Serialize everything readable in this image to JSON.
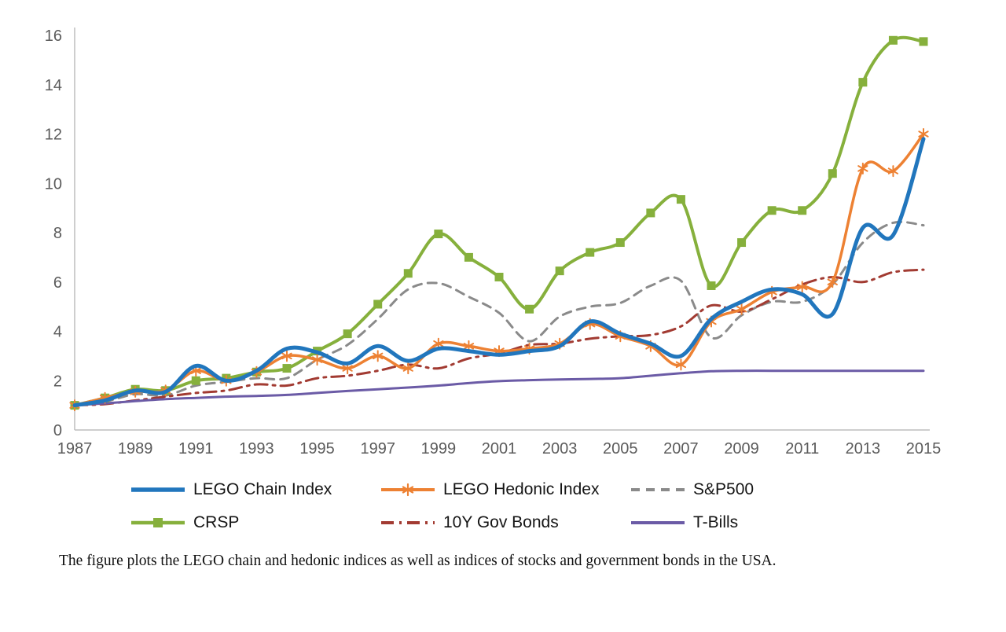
{
  "chart_data": {
    "type": "line",
    "title": "",
    "xlabel": "",
    "ylabel": "",
    "x": [
      1987,
      1988,
      1989,
      1990,
      1991,
      1992,
      1993,
      1994,
      1995,
      1996,
      1997,
      1998,
      1999,
      2000,
      2001,
      2002,
      2003,
      2004,
      2005,
      2006,
      2007,
      2008,
      2009,
      2010,
      2011,
      2012,
      2013,
      2014,
      2015
    ],
    "x_tick_labels": [
      1987,
      1989,
      1991,
      1993,
      1995,
      1997,
      1999,
      2001,
      2003,
      2005,
      2007,
      2009,
      2011,
      2013,
      2015
    ],
    "ylim": [
      0,
      16
    ],
    "y_ticks": [
      0,
      2,
      4,
      6,
      8,
      10,
      12,
      14,
      16
    ],
    "grid": false,
    "legend_position": "below",
    "legend_rows": [
      [
        0,
        1,
        2
      ],
      [
        3,
        4,
        5
      ]
    ],
    "series": [
      {
        "name": "LEGO Chain Index",
        "color": "#2176bd",
        "width": 5,
        "dash": "",
        "marker": "none",
        "values": [
          1.0,
          1.2,
          1.6,
          1.55,
          2.6,
          2.0,
          2.4,
          3.3,
          3.15,
          2.7,
          3.4,
          2.8,
          3.3,
          3.2,
          3.05,
          3.2,
          3.4,
          4.4,
          3.9,
          3.5,
          3.0,
          4.5,
          5.2,
          5.7,
          5.5,
          4.7,
          8.2,
          7.9,
          11.8
        ]
      },
      {
        "name": "LEGO Hedonic Index",
        "color": "#ed8133",
        "width": 3.5,
        "dash": "",
        "marker": "asterisk",
        "values": [
          1.0,
          1.3,
          1.55,
          1.6,
          2.4,
          2.0,
          2.35,
          3.0,
          2.85,
          2.5,
          3.0,
          2.5,
          3.5,
          3.4,
          3.2,
          3.3,
          3.5,
          4.3,
          3.8,
          3.4,
          2.65,
          4.4,
          4.9,
          5.6,
          5.8,
          6.0,
          10.6,
          10.5,
          12.0
        ]
      },
      {
        "name": "S&P500",
        "color": "#8a8a8a",
        "width": 3,
        "dash": "11 8",
        "marker": "none",
        "values": [
          1.0,
          1.15,
          1.45,
          1.4,
          1.8,
          1.95,
          2.1,
          2.1,
          2.85,
          3.45,
          4.5,
          5.7,
          5.95,
          5.4,
          4.75,
          3.6,
          4.6,
          5.0,
          5.15,
          5.85,
          6.05,
          3.75,
          4.65,
          5.2,
          5.2,
          5.9,
          7.6,
          8.4,
          8.3
        ]
      },
      {
        "name": "CRSP",
        "color": "#86b03c",
        "width": 4,
        "dash": "",
        "marker": "square",
        "values": [
          1.0,
          1.3,
          1.65,
          1.6,
          2.0,
          2.1,
          2.35,
          2.5,
          3.2,
          3.9,
          5.1,
          6.35,
          7.95,
          7.0,
          6.2,
          4.9,
          6.45,
          7.2,
          7.6,
          8.8,
          9.35,
          5.85,
          7.6,
          8.9,
          8.9,
          10.4,
          14.1,
          15.8,
          15.75
        ]
      },
      {
        "name": "10Y Gov Bonds",
        "color": "#a23b32",
        "width": 3,
        "dash": "16 7 3 7",
        "marker": "none",
        "values": [
          1.0,
          1.05,
          1.2,
          1.35,
          1.5,
          1.6,
          1.85,
          1.8,
          2.1,
          2.2,
          2.4,
          2.65,
          2.5,
          2.9,
          3.1,
          3.45,
          3.5,
          3.7,
          3.8,
          3.85,
          4.2,
          5.05,
          4.8,
          5.3,
          5.9,
          6.2,
          6.0,
          6.4,
          6.5
        ]
      },
      {
        "name": "T-Bills",
        "color": "#6b5ba6",
        "width": 3,
        "dash": "",
        "marker": "none",
        "values": [
          1.0,
          1.08,
          1.17,
          1.25,
          1.3,
          1.35,
          1.38,
          1.42,
          1.5,
          1.58,
          1.65,
          1.72,
          1.8,
          1.9,
          1.98,
          2.02,
          2.05,
          2.07,
          2.1,
          2.2,
          2.3,
          2.38,
          2.4,
          2.4,
          2.4,
          2.4,
          2.4,
          2.4,
          2.4
        ]
      }
    ]
  },
  "caption": "The figure plots the LEGO chain and hedonic indices as well as indices of stocks and government bonds in the USA."
}
